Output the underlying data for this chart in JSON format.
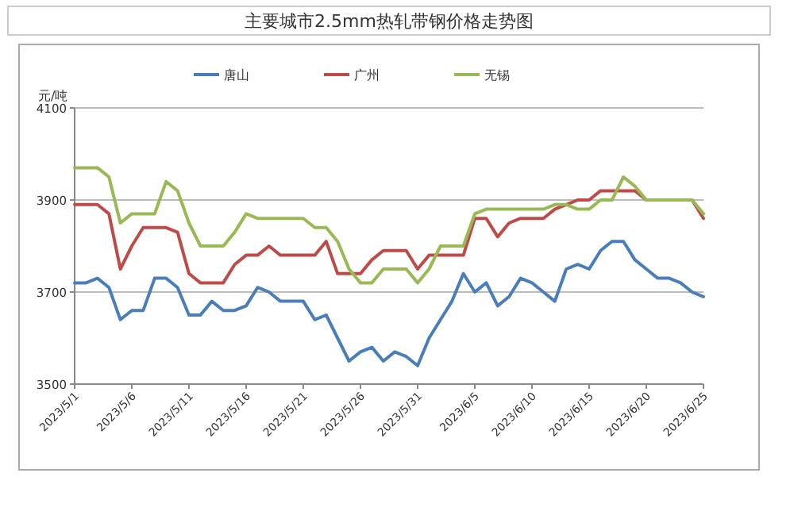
{
  "chart_data": {
    "type": "line",
    "title": "主要城市2.5mm热轧带钢价格走势图",
    "ylabel": "元/吨",
    "x": [
      "2023-05-01",
      "2023-05-02",
      "2023-05-03",
      "2023-05-04",
      "2023-05-05",
      "2023-05-06",
      "2023-05-07",
      "2023-05-08",
      "2023-05-09",
      "2023-05-10",
      "2023-05-11",
      "2023-05-12",
      "2023-05-13",
      "2023-05-14",
      "2023-05-15",
      "2023-05-16",
      "2023-05-17",
      "2023-05-18",
      "2023-05-19",
      "2023-05-20",
      "2023-05-21",
      "2023-05-22",
      "2023-05-23",
      "2023-05-24",
      "2023-05-25",
      "2023-05-26",
      "2023-05-27",
      "2023-05-28",
      "2023-05-29",
      "2023-05-30",
      "2023-05-31",
      "2023-06-01",
      "2023-06-02",
      "2023-06-03",
      "2023-06-04",
      "2023-06-05",
      "2023-06-06",
      "2023-06-07",
      "2023-06-08",
      "2023-06-09",
      "2023-06-10",
      "2023-06-11",
      "2023-06-12",
      "2023-06-13",
      "2023-06-14",
      "2023-06-15",
      "2023-06-16",
      "2023-06-17",
      "2023-06-18",
      "2023-06-19",
      "2023-06-20",
      "2023-06-21",
      "2023-06-22",
      "2023-06-23",
      "2023-06-24",
      "2023-06-25"
    ],
    "series": [
      {
        "name": "唐山",
        "color": "#4a7ebb",
        "values": [
          3720,
          3720,
          3730,
          3710,
          3640,
          3660,
          3660,
          3730,
          3730,
          3710,
          3650,
          3650,
          3680,
          3660,
          3660,
          3670,
          3710,
          3700,
          3680,
          3680,
          3680,
          3640,
          3650,
          3600,
          3550,
          3570,
          3580,
          3550,
          3570,
          3560,
          3540,
          3600,
          3640,
          3680,
          3740,
          3700,
          3720,
          3670,
          3690,
          3730,
          3720,
          3700,
          3680,
          3750,
          3760,
          3750,
          3790,
          3810,
          3810,
          3770,
          3750,
          3730,
          3730,
          3720,
          3700,
          3690
        ]
      },
      {
        "name": "广州",
        "color": "#be4b48",
        "values": [
          3890,
          3890,
          3890,
          3870,
          3750,
          3800,
          3840,
          3840,
          3840,
          3830,
          3740,
          3720,
          3720,
          3720,
          3760,
          3780,
          3780,
          3800,
          3780,
          3780,
          3780,
          3780,
          3810,
          3740,
          3740,
          3740,
          3770,
          3790,
          3790,
          3790,
          3750,
          3780,
          3780,
          3780,
          3780,
          3860,
          3860,
          3820,
          3850,
          3860,
          3860,
          3860,
          3880,
          3890,
          3900,
          3900,
          3920,
          3920,
          3920,
          3920,
          3900,
          null,
          null,
          null,
          3900,
          3860
        ]
      },
      {
        "name": "无锡",
        "color": "#98b954",
        "values": [
          3970,
          3970,
          3970,
          3950,
          3850,
          3870,
          3870,
          3870,
          3940,
          3920,
          3850,
          3800,
          3800,
          3800,
          3830,
          3870,
          3860,
          3860,
          3860,
          3860,
          3860,
          3840,
          3840,
          3810,
          3750,
          3720,
          3720,
          3750,
          3750,
          3750,
          3720,
          3750,
          3800,
          3800,
          3800,
          3870,
          3880,
          3880,
          3880,
          3880,
          3880,
          3880,
          3890,
          3890,
          3880,
          3880,
          3900,
          3900,
          3950,
          3930,
          3900,
          3900,
          3900,
          3900,
          3900,
          3870
        ]
      }
    ],
    "xlim": [
      "2023-05-01",
      "2023-06-25"
    ],
    "xticks": [
      {
        "value": "2023-05-01",
        "label": "2023/5/1"
      },
      {
        "value": "2023-05-06",
        "label": "2023/5/6"
      },
      {
        "value": "2023-05-11",
        "label": "2023/5/11"
      },
      {
        "value": "2023-05-16",
        "label": "2023/5/16"
      },
      {
        "value": "2023-05-21",
        "label": "2023/5/21"
      },
      {
        "value": "2023-05-26",
        "label": "2023/5/26"
      },
      {
        "value": "2023-05-31",
        "label": "2023/5/31"
      },
      {
        "value": "2023-06-05",
        "label": "2023/6/5"
      },
      {
        "value": "2023-06-10",
        "label": "2023/6/10"
      },
      {
        "value": "2023-06-15",
        "label": "2023/6/15"
      },
      {
        "value": "2023-06-20",
        "label": "2023/6/20"
      },
      {
        "value": "2023-06-25",
        "label": "2023/6/25"
      }
    ],
    "ylim": [
      3500,
      4100
    ],
    "yticks": [
      3500,
      3700,
      3900,
      4100
    ],
    "grid": "y",
    "legend": "top",
    "marker": "none",
    "line_style": "solid"
  }
}
